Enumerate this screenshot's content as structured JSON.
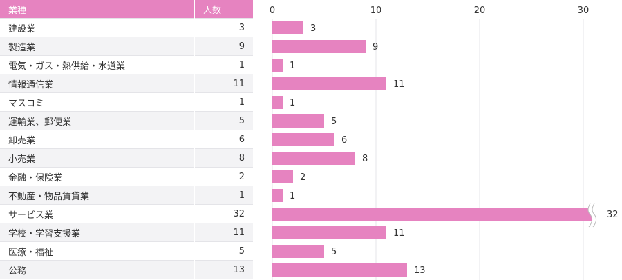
{
  "table": {
    "headers": [
      "業種",
      "人数"
    ]
  },
  "chart_data": {
    "type": "bar",
    "orientation": "horizontal",
    "categories": [
      "建設業",
      "製造業",
      "電気・ガス・熱供給・水道業",
      "情報通信業",
      "マスコミ",
      "運輸業、郵便業",
      "卸売業",
      "小売業",
      "金融・保険業",
      "不動産・物品賃貸業",
      "サービス業",
      "学校・学習支援業",
      "医療・福祉",
      "公務"
    ],
    "values": [
      3,
      9,
      1,
      11,
      1,
      5,
      6,
      8,
      2,
      1,
      32,
      11,
      5,
      13
    ],
    "xticks": [
      0,
      10,
      20,
      30
    ],
    "xlim": [
      0,
      31
    ],
    "axis_break_on": "サービス業",
    "grid": true,
    "color": "#e683c0"
  }
}
